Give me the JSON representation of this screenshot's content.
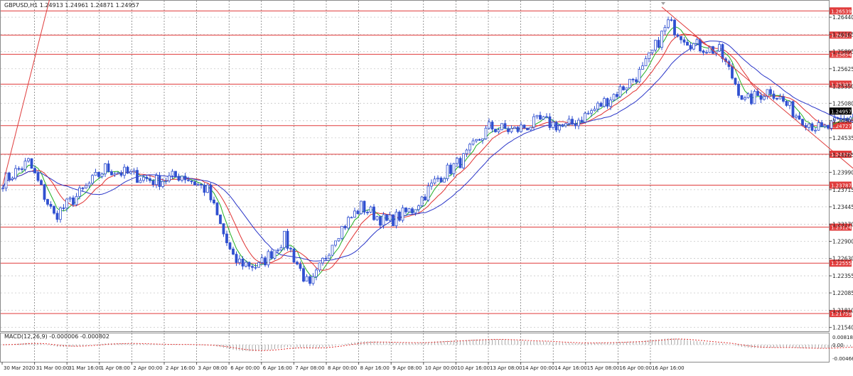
{
  "header": {
    "symbol_line": "GBPUSD,H1  1.24913 1.24961 1.24871 1.24957"
  },
  "macd_panel": {
    "label": "MACD(12,26,9) -0.000006 -0.000802"
  },
  "colors": {
    "candle": "#3050d0",
    "ma_fast": "#22b022",
    "ma_mid": "#e03030",
    "ma_slow": "#2a35c8",
    "level_line": "#e03c3c",
    "level_tag_bg": "#e03c3c",
    "grid": "#c8c8c8",
    "axis_text": "#222222",
    "macd_hist": "#a8a8a8",
    "macd_signal": "#e03030"
  },
  "chart_data": {
    "type": "candlestick",
    "symbol": "GBPUSD",
    "timeframe": "H1",
    "ylim": [
      1.2148,
      1.267
    ],
    "price_ticks": [
      "1.26440",
      "1.26165",
      "1.25895",
      "1.25625",
      "1.25350",
      "1.25080",
      "1.24805",
      "1.24535",
      "1.24265",
      "1.23990",
      "1.23715",
      "1.23445",
      "1.23170",
      "1.22900",
      "1.22630",
      "1.22355",
      "1.22085",
      "1.21810",
      "1.21540"
    ],
    "time_labels": [
      "30 Mar 2020",
      "31 Mar 00:00",
      "31 Mar 16:00",
      "1 Apr 08:00",
      "2 Apr 00:00",
      "2 Apr 16:00",
      "3 Apr 08:00",
      "6 Apr 00:00",
      "6 Apr 16:00",
      "7 Apr 08:00",
      "8 Apr 00:00",
      "8 Apr 16:00",
      "9 Apr 08:00",
      "10 Apr 00:00",
      "10 Apr 16:00",
      "13 Apr 08:00",
      "14 Apr 00:00",
      "14 Apr 16:00",
      "15 Apr 08:00",
      "16 Apr 00:00",
      "16 Apr 16:00"
    ],
    "levels": [
      {
        "label": "1.26539",
        "value": 1.26539
      },
      {
        "label": "1.26157",
        "value": 1.26157
      },
      {
        "label": "1.25854",
        "value": 1.25854
      },
      {
        "label": "1.25382",
        "value": 1.25382
      },
      {
        "label": "1.24727",
        "value": 1.24727
      },
      {
        "label": "1.24275",
        "value": 1.24275
      },
      {
        "label": "1.23787",
        "value": 1.23787
      },
      {
        "label": "1.23124",
        "value": 1.23124
      },
      {
        "label": "1.22555",
        "value": 1.22555
      },
      {
        "label": "1.21759",
        "value": 1.21759
      }
    ],
    "current_price": {
      "label": "1.24957",
      "value": 1.24957
    },
    "close_path": [
      [
        0,
        1.2385
      ],
      [
        8,
        1.2415
      ],
      [
        16,
        1.233
      ],
      [
        24,
        1.2365
      ],
      [
        32,
        1.2405
      ],
      [
        40,
        1.2395
      ],
      [
        48,
        1.2385
      ],
      [
        56,
        1.2395
      ],
      [
        64,
        1.237
      ],
      [
        72,
        1.226
      ],
      [
        80,
        1.225
      ],
      [
        88,
        1.2295
      ],
      [
        96,
        1.2215
      ],
      [
        104,
        1.23
      ],
      [
        112,
        1.2345
      ],
      [
        120,
        1.232
      ],
      [
        128,
        1.234
      ],
      [
        136,
        1.239
      ],
      [
        144,
        1.242
      ],
      [
        152,
        1.247
      ],
      [
        160,
        1.2465
      ],
      [
        168,
        1.248
      ],
      [
        176,
        1.247
      ],
      [
        184,
        1.2495
      ],
      [
        192,
        1.2525
      ],
      [
        200,
        1.256
      ],
      [
        208,
        1.2635
      ],
      [
        216,
        1.26
      ],
      [
        224,
        1.259
      ],
      [
        232,
        1.251
      ],
      [
        240,
        1.253
      ],
      [
        248,
        1.249
      ],
      [
        256,
        1.2465
      ],
      [
        264,
        1.2485
      ],
      [
        272,
        1.251
      ],
      [
        277,
        1.2496
      ]
    ],
    "trendlines": [
      {
        "from": [
          0,
          1.238
        ],
        "to": [
          16,
          1.27
        ]
      },
      {
        "from": [
          206,
          1.266
        ],
        "to": [
          314,
          1.22
        ]
      }
    ],
    "bar_count": 278
  }
}
